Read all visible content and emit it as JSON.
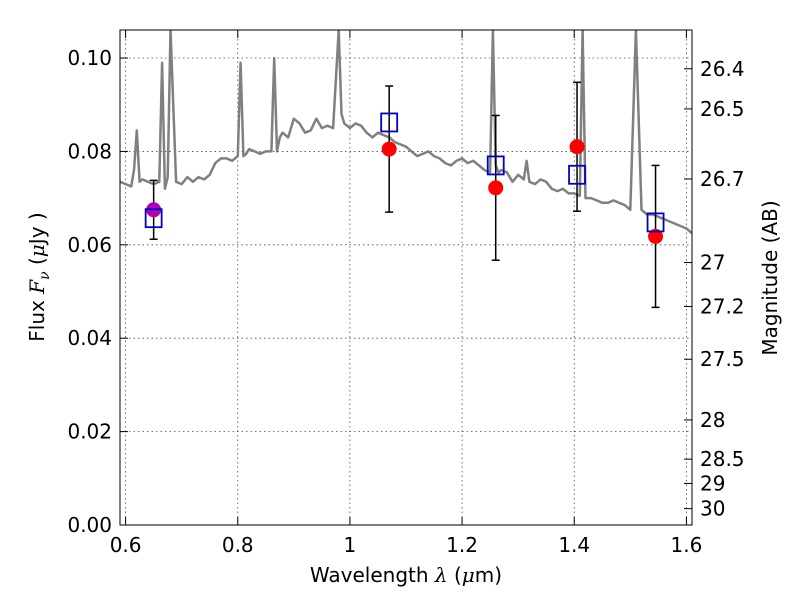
{
  "chart_data": {
    "type": "scatter",
    "xlabel_text": "Wavelength",
    "xlabel_symbol": "λ",
    "xlabel_unit_open": " (",
    "xlabel_unit_mu": "μ",
    "xlabel_unit_rest": "m)",
    "ylabel_text": "Flux",
    "ylabel_symbol": "F",
    "ylabel_subscript": "ν",
    "ylabel_unit_open": " (",
    "ylabel_unit_mu": "μ",
    "ylabel_unit_rest": "Jy )",
    "y2label": "Magnitude (AB)",
    "xlim": [
      0.59,
      1.61
    ],
    "ylim": [
      0.0,
      0.106
    ],
    "xticks": [
      0.6,
      0.8,
      1.0,
      1.2,
      1.4,
      1.6
    ],
    "xtick_labels": [
      "0.6",
      "0.8",
      "1",
      "1.2",
      "1.4",
      "1.6"
    ],
    "yticks": [
      0.0,
      0.02,
      0.04,
      0.06,
      0.08,
      0.1
    ],
    "ytick_labels": [
      "0.00",
      "0.02",
      "0.04",
      "0.06",
      "0.08",
      "0.10"
    ],
    "y2ticks": [
      {
        "label": "26.4",
        "flux": 0.0977
      },
      {
        "label": "26.5",
        "flux": 0.0891
      },
      {
        "label": "26.7",
        "flux": 0.0741
      },
      {
        "label": "27",
        "flux": 0.0562
      },
      {
        "label": "27.2",
        "flux": 0.0468
      },
      {
        "label": "27.5",
        "flux": 0.0355
      },
      {
        "label": "28",
        "flux": 0.0225
      },
      {
        "label": "28.5",
        "flux": 0.0141
      },
      {
        "label": "29",
        "flux": 0.0089
      },
      {
        "label": "30",
        "flux": 0.0035
      }
    ],
    "grid": true,
    "colors": {
      "model": "#808080",
      "observed": "#ff0000",
      "observed_alt": "#b000b0",
      "model_photometry": "#0000cc",
      "errorbar": "#000000"
    },
    "series": [
      {
        "kind": "line",
        "color": "#808080",
        "x": [
          0.59,
          0.6,
          0.61,
          0.615,
          0.62,
          0.625,
          0.63,
          0.64,
          0.65,
          0.66,
          0.665,
          0.67,
          0.675,
          0.68,
          0.69,
          0.7,
          0.71,
          0.72,
          0.73,
          0.74,
          0.75,
          0.76,
          0.77,
          0.78,
          0.79,
          0.8,
          0.805,
          0.81,
          0.815,
          0.82,
          0.83,
          0.84,
          0.85,
          0.86,
          0.865,
          0.87,
          0.875,
          0.88,
          0.89,
          0.9,
          0.91,
          0.92,
          0.93,
          0.94,
          0.95,
          0.96,
          0.97,
          0.98,
          0.985,
          0.99,
          1.0,
          1.01,
          1.02,
          1.03,
          1.04,
          1.05,
          1.06,
          1.07,
          1.08,
          1.09,
          1.1,
          1.11,
          1.12,
          1.13,
          1.14,
          1.15,
          1.16,
          1.17,
          1.18,
          1.19,
          1.2,
          1.21,
          1.22,
          1.23,
          1.24,
          1.25,
          1.255,
          1.26,
          1.265,
          1.27,
          1.28,
          1.29,
          1.3,
          1.31,
          1.315,
          1.32,
          1.33,
          1.34,
          1.35,
          1.36,
          1.37,
          1.38,
          1.39,
          1.4,
          1.41,
          1.415,
          1.42,
          1.43,
          1.44,
          1.45,
          1.46,
          1.47,
          1.48,
          1.49,
          1.5,
          1.51,
          1.52,
          1.53,
          1.54,
          1.55,
          1.56,
          1.57,
          1.58,
          1.59,
          1.6,
          1.61
        ],
        "y": [
          0.0735,
          0.073,
          0.0725,
          0.076,
          0.0845,
          0.0735,
          0.074,
          0.0735,
          0.073,
          0.0735,
          0.099,
          0.072,
          0.0745,
          0.106,
          0.0735,
          0.073,
          0.0745,
          0.0735,
          0.0745,
          0.074,
          0.075,
          0.0775,
          0.0785,
          0.0785,
          0.078,
          0.079,
          0.099,
          0.079,
          0.0795,
          0.0805,
          0.08,
          0.0795,
          0.08,
          0.08,
          0.1,
          0.08,
          0.083,
          0.084,
          0.083,
          0.087,
          0.086,
          0.084,
          0.0845,
          0.087,
          0.085,
          0.0855,
          0.085,
          0.106,
          0.088,
          0.086,
          0.085,
          0.086,
          0.0855,
          0.084,
          0.083,
          0.084,
          0.0835,
          0.083,
          0.082,
          0.0815,
          0.081,
          0.08,
          0.079,
          0.0795,
          0.08,
          0.079,
          0.0785,
          0.0775,
          0.077,
          0.078,
          0.0785,
          0.0775,
          0.078,
          0.077,
          0.076,
          0.0755,
          0.106,
          0.077,
          0.0755,
          0.076,
          0.0755,
          0.0735,
          0.075,
          0.074,
          0.078,
          0.0735,
          0.073,
          0.074,
          0.0735,
          0.072,
          0.0715,
          0.072,
          0.071,
          0.071,
          0.0705,
          0.106,
          0.07,
          0.07,
          0.0695,
          0.069,
          0.069,
          0.0695,
          0.069,
          0.0685,
          0.0675,
          0.106,
          0.0675,
          0.0665,
          0.0665,
          0.066,
          0.0655,
          0.065,
          0.0645,
          0.064,
          0.0635,
          0.0625
        ]
      },
      {
        "kind": "points",
        "marker": "circle",
        "x": [
          0.65,
          1.07,
          1.26,
          1.405,
          1.545
        ],
        "y": [
          0.0675,
          0.0805,
          0.0722,
          0.081,
          0.0618
        ],
        "yerr": [
          0.0063,
          0.0135,
          0.0155,
          0.0138,
          0.0152
        ],
        "colors": [
          "#b000b0",
          "#ff0000",
          "#ff0000",
          "#ff0000",
          "#ff0000"
        ]
      },
      {
        "kind": "points",
        "marker": "open-square",
        "color": "#0000cc",
        "x": [
          0.65,
          1.07,
          1.26,
          1.405,
          1.545
        ],
        "y": [
          0.0657,
          0.0862,
          0.077,
          0.075,
          0.0648
        ]
      }
    ]
  }
}
